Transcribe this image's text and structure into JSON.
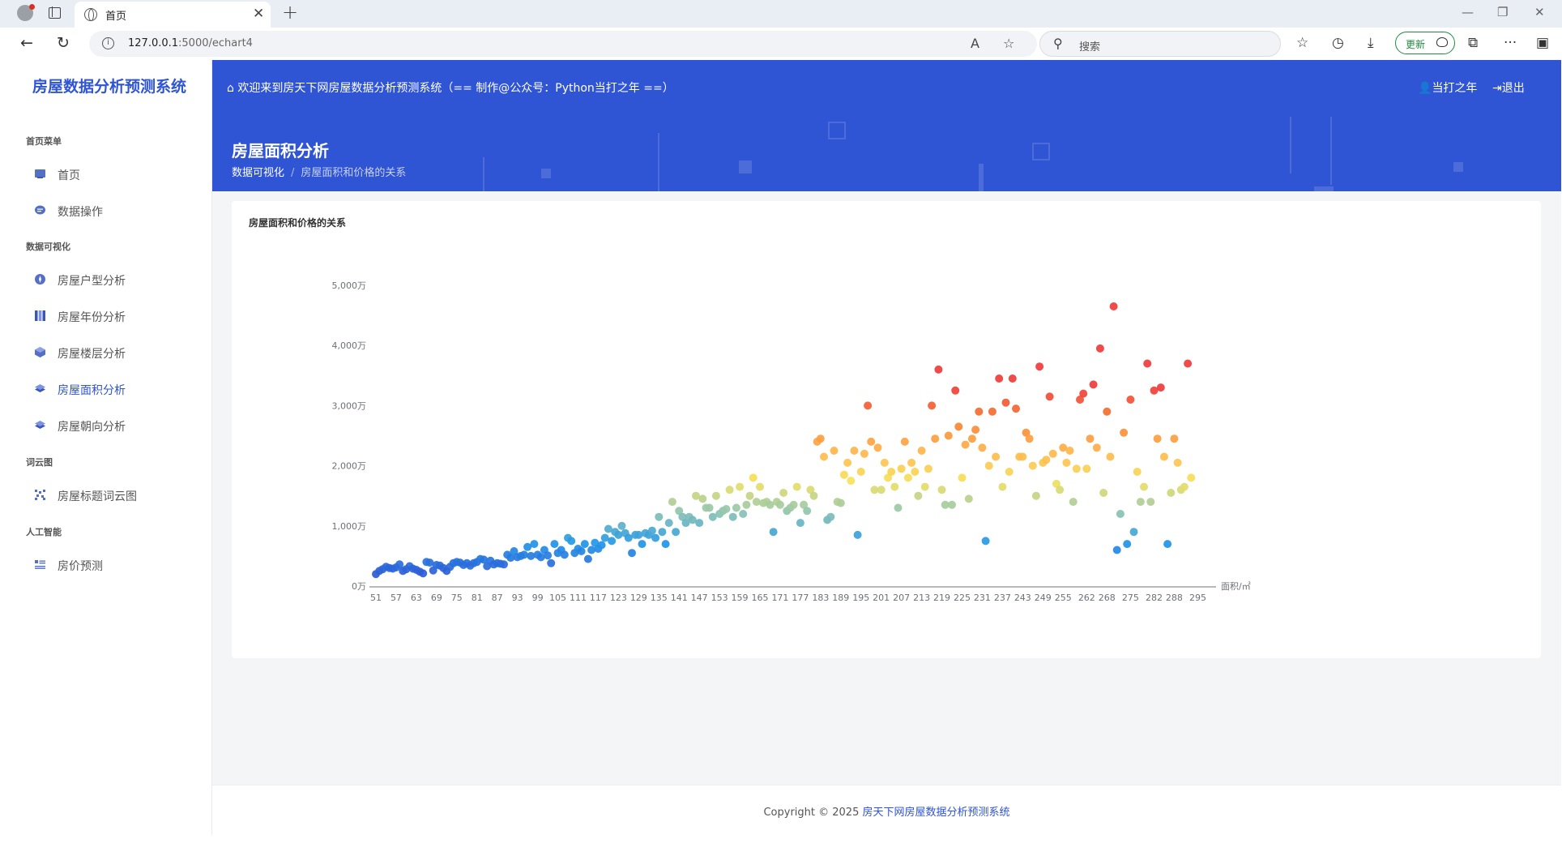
{
  "browser": {
    "tab_title": "首页",
    "url_host": "127.0.0.1",
    "url_rest": ":5000/echart4",
    "search_placeholder": "搜索",
    "update_label": "更新"
  },
  "sidebar": {
    "brand": "房屋数据分析预测系统",
    "groups": [
      {
        "label": "首页菜单",
        "items": [
          {
            "label": "首页"
          },
          {
            "label": "数据操作"
          }
        ]
      },
      {
        "label": "数据可视化",
        "items": [
          {
            "label": "房屋户型分析"
          },
          {
            "label": "房屋年份分析"
          },
          {
            "label": "房屋楼层分析"
          },
          {
            "label": "房屋面积分析"
          },
          {
            "label": "房屋朝向分析"
          }
        ]
      },
      {
        "label": "词云图",
        "items": [
          {
            "label": "房屋标题词云图"
          }
        ]
      },
      {
        "label": "人工智能",
        "items": [
          {
            "label": "房价预测"
          }
        ]
      }
    ],
    "active_item": "房屋面积分析",
    "accent_color": "#2f54d4"
  },
  "header": {
    "welcome": "欢迎来到房天下网房屋数据分析预测系统（== 制作@公众号：Python当打之年 ==）",
    "user": "当打之年",
    "logout": "退出",
    "page_title": "房屋面积分析",
    "breadcrumb": [
      "数据可视化",
      "房屋面积和价格的关系"
    ],
    "bg_color": "#2f54d4"
  },
  "card": {
    "title": "房屋面积和价格的关系"
  },
  "chart_data": {
    "type": "scatter",
    "title": "房屋面积和价格的关系",
    "xlabel": "面积/㎡",
    "ylabel": "",
    "y_unit": "万",
    "ylim": [
      0,
      5000
    ],
    "y_ticks": [
      "0万",
      "1,000万",
      "2,000万",
      "3,000万",
      "4,000万",
      "5,000万"
    ],
    "x_ticks": [
      "51",
      "57",
      "63",
      "69",
      "75",
      "81",
      "87",
      "93",
      "99",
      "105",
      "111",
      "117",
      "123",
      "129",
      "135",
      "141",
      "147",
      "153",
      "159",
      "165",
      "171",
      "177",
      "183",
      "189",
      "195",
      "201",
      "207",
      "213",
      "219",
      "225",
      "231",
      "237",
      "243",
      "249",
      "255",
      "262",
      "268",
      "275",
      "282",
      "288",
      "295"
    ],
    "xlim": [
      51,
      298
    ],
    "grid": false,
    "visual_map_colors": [
      "#2e5bd6",
      "#2196e8",
      "#8fc5b0",
      "#f7e25a",
      "#ffb24a",
      "#f77a2e",
      "#ef3b3b"
    ],
    "points": [
      [
        51,
        200
      ],
      [
        52,
        250
      ],
      [
        53,
        280
      ],
      [
        54,
        320
      ],
      [
        55,
        300
      ],
      [
        56,
        290
      ],
      [
        57,
        310
      ],
      [
        58,
        360
      ],
      [
        59,
        250
      ],
      [
        60,
        280
      ],
      [
        61,
        330
      ],
      [
        62,
        290
      ],
      [
        63,
        270
      ],
      [
        64,
        240
      ],
      [
        65,
        210
      ],
      [
        66,
        400
      ],
      [
        67,
        390
      ],
      [
        68,
        260
      ],
      [
        69,
        350
      ],
      [
        70,
        340
      ],
      [
        71,
        300
      ],
      [
        72,
        250
      ],
      [
        73,
        320
      ],
      [
        74,
        380
      ],
      [
        75,
        400
      ],
      [
        76,
        390
      ],
      [
        77,
        350
      ],
      [
        78,
        380
      ],
      [
        79,
        340
      ],
      [
        80,
        380
      ],
      [
        81,
        400
      ],
      [
        82,
        450
      ],
      [
        83,
        440
      ],
      [
        84,
        330
      ],
      [
        85,
        420
      ],
      [
        86,
        360
      ],
      [
        87,
        380
      ],
      [
        88,
        370
      ],
      [
        89,
        360
      ],
      [
        90,
        520
      ],
      [
        91,
        470
      ],
      [
        92,
        580
      ],
      [
        93,
        480
      ],
      [
        94,
        500
      ],
      [
        95,
        520
      ],
      [
        96,
        650
      ],
      [
        97,
        500
      ],
      [
        98,
        700
      ],
      [
        99,
        520
      ],
      [
        100,
        480
      ],
      [
        101,
        600
      ],
      [
        102,
        510
      ],
      [
        103,
        380
      ],
      [
        104,
        700
      ],
      [
        105,
        550
      ],
      [
        106,
        600
      ],
      [
        107,
        520
      ],
      [
        108,
        800
      ],
      [
        109,
        750
      ],
      [
        110,
        550
      ],
      [
        111,
        620
      ],
      [
        112,
        580
      ],
      [
        113,
        700
      ],
      [
        114,
        450
      ],
      [
        115,
        600
      ],
      [
        116,
        720
      ],
      [
        117,
        620
      ],
      [
        118,
        680
      ],
      [
        119,
        800
      ],
      [
        120,
        950
      ],
      [
        121,
        750
      ],
      [
        122,
        900
      ],
      [
        123,
        850
      ],
      [
        124,
        1000
      ],
      [
        125,
        880
      ],
      [
        126,
        800
      ],
      [
        127,
        550
      ],
      [
        128,
        850
      ],
      [
        129,
        850
      ],
      [
        130,
        700
      ],
      [
        131,
        880
      ],
      [
        132,
        850
      ],
      [
        133,
        920
      ],
      [
        134,
        800
      ],
      [
        135,
        1150
      ],
      [
        136,
        900
      ],
      [
        137,
        700
      ],
      [
        138,
        1050
      ],
      [
        139,
        1400
      ],
      [
        140,
        900
      ],
      [
        141,
        1250
      ],
      [
        142,
        1150
      ],
      [
        143,
        1050
      ],
      [
        144,
        1150
      ],
      [
        145,
        1100
      ],
      [
        146,
        1500
      ],
      [
        147,
        1050
      ],
      [
        148,
        1450
      ],
      [
        149,
        1300
      ],
      [
        150,
        1300
      ],
      [
        151,
        1150
      ],
      [
        152,
        1500
      ],
      [
        153,
        1200
      ],
      [
        154,
        1250
      ],
      [
        155,
        1280
      ],
      [
        156,
        1600
      ],
      [
        157,
        1150
      ],
      [
        158,
        1300
      ],
      [
        159,
        1650
      ],
      [
        160,
        1200
      ],
      [
        161,
        1350
      ],
      [
        162,
        1500
      ],
      [
        163,
        1800
      ],
      [
        164,
        1400
      ],
      [
        165,
        1650
      ],
      [
        166,
        1380
      ],
      [
        167,
        1400
      ],
      [
        168,
        1350
      ],
      [
        169,
        900
      ],
      [
        170,
        1400
      ],
      [
        171,
        1350
      ],
      [
        172,
        1550
      ],
      [
        173,
        1250
      ],
      [
        174,
        1300
      ],
      [
        175,
        1350
      ],
      [
        176,
        1650
      ],
      [
        177,
        1050
      ],
      [
        178,
        1350
      ],
      [
        179,
        1250
      ],
      [
        180,
        1600
      ],
      [
        181,
        1500
      ],
      [
        182,
        2400
      ],
      [
        183,
        2450
      ],
      [
        184,
        2150
      ],
      [
        185,
        1100
      ],
      [
        186,
        1150
      ],
      [
        187,
        2250
      ],
      [
        188,
        1400
      ],
      [
        189,
        1380
      ],
      [
        190,
        1850
      ],
      [
        191,
        2050
      ],
      [
        192,
        1750
      ],
      [
        193,
        2250
      ],
      [
        194,
        850
      ],
      [
        195,
        1900
      ],
      [
        196,
        2200
      ],
      [
        197,
        3000
      ],
      [
        198,
        2400
      ],
      [
        199,
        1600
      ],
      [
        200,
        2300
      ],
      [
        201,
        1600
      ],
      [
        202,
        2050
      ],
      [
        203,
        1800
      ],
      [
        204,
        1900
      ],
      [
        205,
        1650
      ],
      [
        206,
        1300
      ],
      [
        207,
        1950
      ],
      [
        208,
        2400
      ],
      [
        209,
        1800
      ],
      [
        210,
        2050
      ],
      [
        211,
        1900
      ],
      [
        212,
        1500
      ],
      [
        213,
        2250
      ],
      [
        214,
        1650
      ],
      [
        215,
        1950
      ],
      [
        216,
        3000
      ],
      [
        217,
        2450
      ],
      [
        218,
        3600
      ],
      [
        219,
        1600
      ],
      [
        220,
        1350
      ],
      [
        221,
        2500
      ],
      [
        222,
        1350
      ],
      [
        223,
        3250
      ],
      [
        224,
        2650
      ],
      [
        225,
        1800
      ],
      [
        226,
        2350
      ],
      [
        227,
        1450
      ],
      [
        228,
        2450
      ],
      [
        229,
        2600
      ],
      [
        230,
        2900
      ],
      [
        231,
        2300
      ],
      [
        232,
        750
      ],
      [
        233,
        2000
      ],
      [
        234,
        2900
      ],
      [
        235,
        2150
      ],
      [
        236,
        3450
      ],
      [
        237,
        1650
      ],
      [
        238,
        3050
      ],
      [
        239,
        1900
      ],
      [
        240,
        3450
      ],
      [
        241,
        2950
      ],
      [
        242,
        2150
      ],
      [
        243,
        2150
      ],
      [
        244,
        2550
      ],
      [
        245,
        2450
      ],
      [
        246,
        2000
      ],
      [
        247,
        1500
      ],
      [
        248,
        3650
      ],
      [
        249,
        2050
      ],
      [
        250,
        2100
      ],
      [
        251,
        3150
      ],
      [
        252,
        2200
      ],
      [
        253,
        1700
      ],
      [
        254,
        1600
      ],
      [
        255,
        2300
      ],
      [
        256,
        2050
      ],
      [
        257,
        2250
      ],
      [
        258,
        1400
      ],
      [
        259,
        1950
      ],
      [
        260,
        3100
      ],
      [
        261,
        3200
      ],
      [
        262,
        1950
      ],
      [
        263,
        2450
      ],
      [
        264,
        3350
      ],
      [
        265,
        2300
      ],
      [
        266,
        3950
      ],
      [
        267,
        1550
      ],
      [
        268,
        2900
      ],
      [
        269,
        2150
      ],
      [
        270,
        4650
      ],
      [
        271,
        600
      ],
      [
        272,
        1200
      ],
      [
        273,
        2550
      ],
      [
        274,
        700
      ],
      [
        275,
        3100
      ],
      [
        276,
        900
      ],
      [
        277,
        1900
      ],
      [
        278,
        1400
      ],
      [
        279,
        1650
      ],
      [
        280,
        3700
      ],
      [
        281,
        1400
      ],
      [
        282,
        3250
      ],
      [
        283,
        2450
      ],
      [
        284,
        3300
      ],
      [
        285,
        2150
      ],
      [
        286,
        700
      ],
      [
        287,
        1550
      ],
      [
        288,
        2450
      ],
      [
        289,
        2050
      ],
      [
        290,
        1600
      ],
      [
        291,
        1650
      ],
      [
        292,
        3700
      ],
      [
        293,
        1800
      ]
    ]
  },
  "footer": {
    "prefix": "Copyright © 2025 ",
    "link": "房天下网房屋数据分析预测系统"
  }
}
